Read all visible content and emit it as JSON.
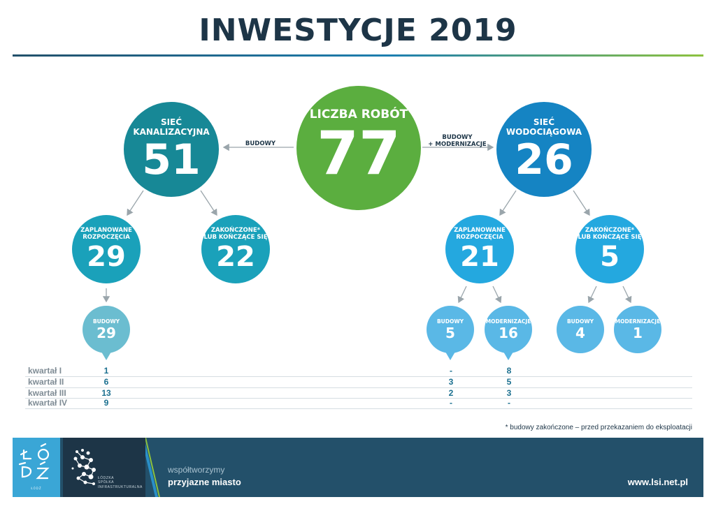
{
  "title": "INWESTYCJE 2019",
  "center": {
    "label": "LICZBA ROBÓT",
    "value": "77"
  },
  "left_branch": {
    "label": "SIEĆ\nKANALIZACYJNA",
    "value": "51",
    "arrow_label": "BUDOWY"
  },
  "right_branch": {
    "label": "SIEĆ\nWODOCIĄGOWA",
    "value": "26",
    "arrow_label": "BUDOWY\n+ MODERNIZACJE"
  },
  "left_planned": {
    "label": "ZAPLANOWANE\nROZPOCZĘCIA",
    "value": "29"
  },
  "left_finished": {
    "label": "ZAKOŃCZONE*\nLUB KOŃCZĄCE SIĘ",
    "value": "22"
  },
  "right_planned": {
    "label": "ZAPLANOWANE\nROZPOCZĘCIA",
    "value": "21"
  },
  "right_finished": {
    "label": "ZAKOŃCZONE*\nLUB KOŃCZĄCE SIĘ",
    "value": "5"
  },
  "leaves": {
    "l_budowy": {
      "label": "BUDOWY",
      "value": "29"
    },
    "rp_budowy": {
      "label": "BUDOWY",
      "value": "5"
    },
    "rp_modern": {
      "label": "MODERNIZACJE",
      "value": "16"
    },
    "rf_budowy": {
      "label": "BUDOWY",
      "value": "4"
    },
    "rf_modern": {
      "label": "MODERNIZACJE",
      "value": "1"
    }
  },
  "quarters": [
    {
      "label": "kwartał I",
      "l_budowy": "1",
      "rp_budowy": "-",
      "rp_modern": "8"
    },
    {
      "label": "kwartał II",
      "l_budowy": "6",
      "rp_budowy": "3",
      "rp_modern": "5"
    },
    {
      "label": "kwartał III",
      "l_budowy": "13",
      "rp_budowy": "2",
      "rp_modern": "3"
    },
    {
      "label": "kwartał IV",
      "l_budowy": "9",
      "rp_budowy": "-",
      "rp_modern": "-"
    }
  ],
  "footnote": "* budowy zakończone – przed przekazaniem do eksploatacji",
  "footer": {
    "slogan_line1": "współtworzymy",
    "slogan_line2": "przyjazne miasto",
    "website": "www.lsi.net.pl",
    "lsi_name": "ŁÓDZKA\nSPÓŁKA\nINFRASTRUKTURALNA",
    "lodz_logo_text": "ŁÓDŹ",
    "lodz_sub": "ŁÓDŹ"
  },
  "colors": {
    "green": "#5bae3f",
    "teal": "#178896",
    "blue": "#1584c3",
    "mid_teal": "#1aa1ba",
    "mid_blue": "#24a8df",
    "light_teal": "#6bbdd0",
    "light_blue": "#5ab8e6"
  }
}
